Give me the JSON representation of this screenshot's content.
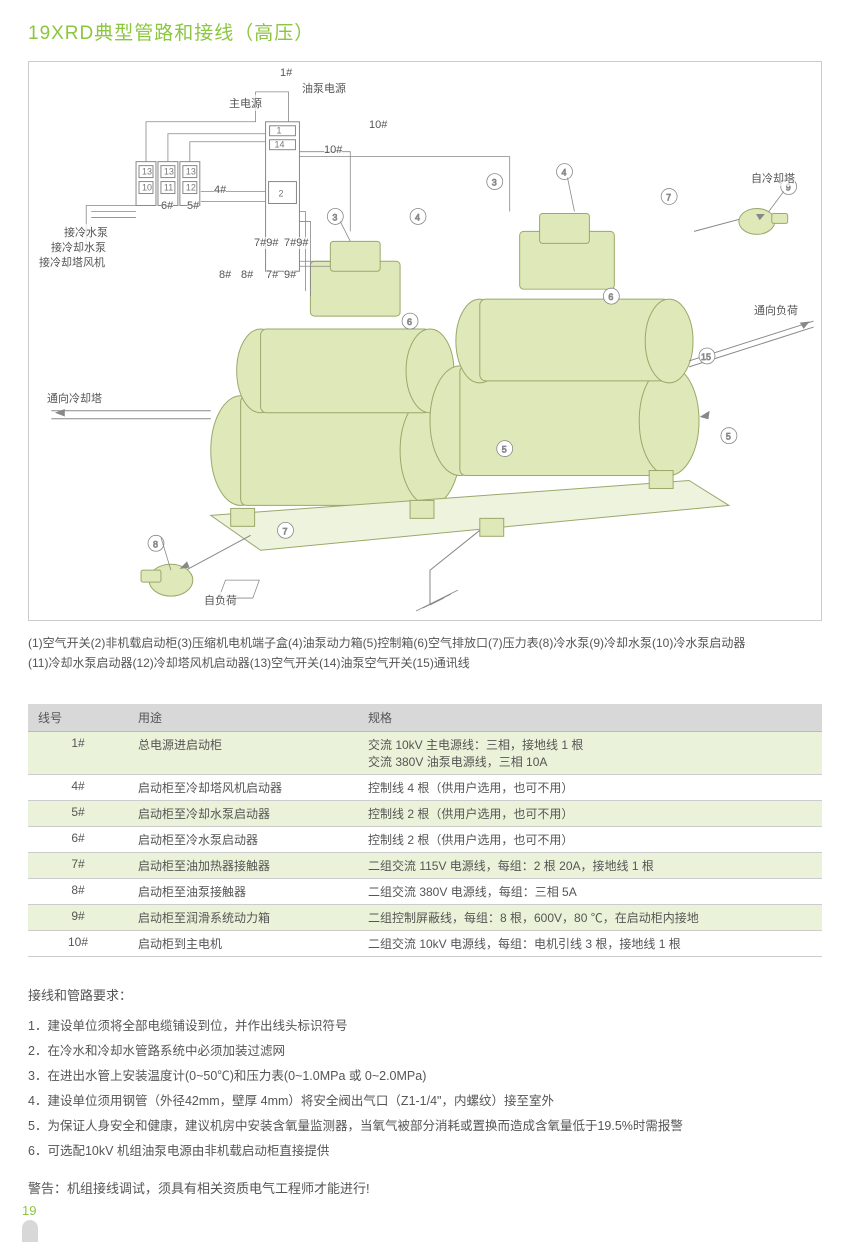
{
  "title": "19XRD典型管路和接线（高压）",
  "colors": {
    "accent": "#8cc63f",
    "machine_fill": "#dfe8b8",
    "machine_stroke": "#9aa86a",
    "line": "#888888",
    "header_bg": "#d8d8d8",
    "alt_row": "#eaf3d9"
  },
  "diagram": {
    "labels": {
      "main_power": "主电源",
      "oil_pump_power": "油泵电源",
      "to_cooling_tower": "通向冷却塔",
      "to_load": "通向负荷",
      "from_load": "自负荷",
      "from_cooling_tower": "自冷却塔",
      "conn_chilled_pump": "接冷水泵",
      "conn_cooling_pump": "接冷却水泵",
      "conn_tower_fan": "接冷却塔风机",
      "wire_1": "1#",
      "wire_4": "4#",
      "wire_5": "5#",
      "wire_6": "6#",
      "wire_7": "7#",
      "wire_8": "8#",
      "wire_9": "9#",
      "wire_10": "10#",
      "wire_7_9": "7#9#",
      "panel_10": "10",
      "panel_11": "11",
      "panel_12": "12",
      "panel_13": "13",
      "panel_1": "1",
      "panel_14": "14",
      "panel_2": "2"
    },
    "callouts": [
      "1",
      "2",
      "3",
      "4",
      "5",
      "6",
      "7",
      "8",
      "9",
      "15"
    ],
    "legend_line1": "(1)空气开关(2)非机载启动柜(3)压缩机电机端子盒(4)油泵动力箱(5)控制箱(6)空气排放口(7)压力表(8)冷水泵(9)冷却水泵(10)冷水泵启动器",
    "legend_line2": "(11)冷却水泵启动器(12)冷却塔风机启动器(13)空气开关(14)油泵空气开关(15)通讯线"
  },
  "table": {
    "headers": {
      "col1": "线号",
      "col2": "用途",
      "col3": "规格"
    },
    "rows": [
      {
        "no": "1#",
        "use": "总电源进启动柜",
        "spec": "交流 10kV 主电源线：三相，接地线 1 根\n交流 380V 油泵电源线，三相 10A",
        "alt": true
      },
      {
        "no": "4#",
        "use": "启动柜至冷却塔风机启动器",
        "spec": "控制线 4 根（供用户选用，也可不用）",
        "alt": false
      },
      {
        "no": "5#",
        "use": "启动柜至冷却水泵启动器",
        "spec": "控制线 2 根（供用户选用，也可不用）",
        "alt": true
      },
      {
        "no": "6#",
        "use": "启动柜至冷水泵启动器",
        "spec": "控制线 2 根（供用户选用，也可不用）",
        "alt": false
      },
      {
        "no": "7#",
        "use": "启动柜至油加热器接触器",
        "spec": "二组交流 115V 电源线，每组：2 根 20A，接地线 1 根",
        "alt": true
      },
      {
        "no": "8#",
        "use": "启动柜至油泵接触器",
        "spec": "二组交流 380V 电源线，每组：三相 5A",
        "alt": false
      },
      {
        "no": "9#",
        "use": "启动柜至润滑系统动力箱",
        "spec": "二组控制屏蔽线，每组：8 根，600V，80 ℃，在启动柜内接地",
        "alt": true
      },
      {
        "no": "10#",
        "use": "启动柜到主电机",
        "spec": "二组交流 10kV 电源线，每组：电机引线 3 根，接地线 1 根",
        "alt": false
      }
    ]
  },
  "requirements": {
    "title": "接线和管路要求：",
    "items": [
      "1．建设单位须将全部电缆铺设到位，并作出线头标识符号",
      "2．在冷水和冷却水管路系统中必须加装过滤网",
      "3．在进出水管上安装温度计(0~50℃)和压力表(0~1.0MPa 或 0~2.0MPa)",
      "4．建设单位须用钢管（外径42mm，壁厚 4mm）将安全阀出气口（Z1-1/4\"，内螺纹）接至室外",
      "5．为保证人身安全和健康，建议机房中安装含氧量监测器，当氧气被部分消耗或置换而造成含氧量低于19.5%时需报警",
      "6．可选配10kV 机组油泵电源由非机载启动柜直接提供"
    ]
  },
  "warning": "警告：机组接线调试，须具有相关资质电气工程师才能进行!",
  "page_number": "19"
}
